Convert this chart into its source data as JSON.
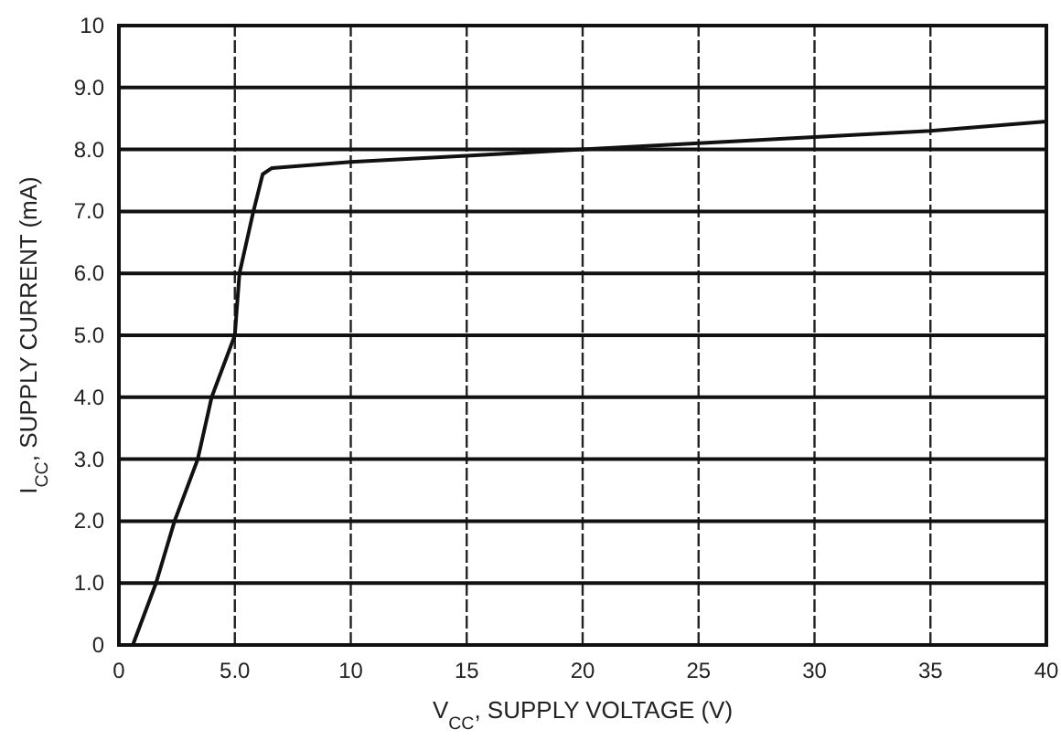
{
  "chart_data": {
    "type": "line",
    "xlabel": "V$_{CC}$, SUPPLY VOLTAGE (V)",
    "ylabel": "I$_{CC}$, SUPPLY CURRENT (mA)",
    "x": [
      0.6,
      1.6,
      2.4,
      3.4,
      4.0,
      5.0,
      5.2,
      5.8,
      6.2,
      6.6,
      10,
      15,
      20,
      25,
      30,
      35,
      40
    ],
    "series": [
      {
        "color": "#111111",
        "values": [
          0,
          1.0,
          2.0,
          3.0,
          4.0,
          5.0,
          6.0,
          7.0,
          7.6,
          7.7,
          7.8,
          7.9,
          8.0,
          8.1,
          8.2,
          8.3,
          8.45
        ]
      }
    ],
    "xlim": [
      0,
      40
    ],
    "xticks": [
      0,
      {
        "value": 5,
        "label": "5.0"
      },
      10,
      15,
      20,
      25,
      30,
      35,
      40
    ],
    "ylim": [
      0,
      10
    ],
    "yticks": [
      0,
      {
        "value": 1,
        "label": "1.0"
      },
      {
        "value": 2,
        "label": "2.0"
      },
      {
        "value": 3,
        "label": "3.0"
      },
      {
        "value": 4,
        "label": "4.0"
      },
      {
        "value": 5,
        "label": "5.0"
      },
      {
        "value": 6,
        "label": "6.0"
      },
      {
        "value": 7,
        "label": "7.0"
      },
      {
        "value": 8,
        "label": "8.0"
      },
      {
        "value": 9,
        "label": "9.0"
      },
      10
    ],
    "grid": true,
    "line_style": "solid",
    "marker": "none"
  }
}
